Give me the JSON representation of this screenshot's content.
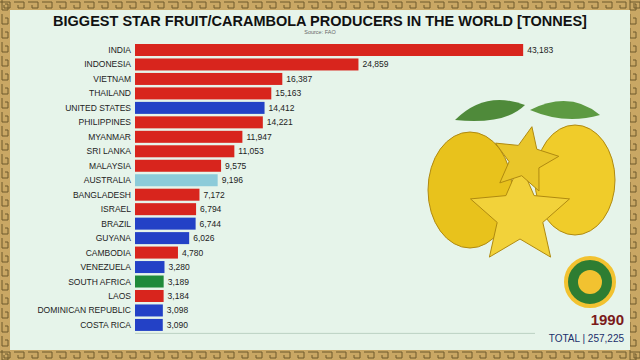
{
  "chart_data": {
    "type": "bar",
    "orientation": "horizontal",
    "title": "BIGGEST STAR FRUIT/CARAMBOLA PRODUCERS IN THE WORLD [TONNES]",
    "subtitle": "Source: FAO",
    "annotations": [
      "1990",
      "TOTAL | 257,225"
    ],
    "categories": [
      "INDIA",
      "INDONESIA",
      "VIETNAM",
      "THAILAND",
      "UNITED STATES",
      "PHILIPPINES",
      "MYANMAR",
      "SRI LANKA",
      "MALAYSIA",
      "AUSTRALIA",
      "BANGLADESH",
      "ISRAEL",
      "BRAZIL",
      "GUYANA",
      "CAMBODIA",
      "VENEZUELA",
      "SOUTH AFRICA",
      "LAOS",
      "DOMINICAN REPUBLIC",
      "COSTA RICA"
    ],
    "values": [
      43183,
      24859,
      16387,
      15163,
      14412,
      14221,
      11947,
      11053,
      9575,
      9196,
      7172,
      6794,
      6744,
      6026,
      4780,
      3280,
      3189,
      3184,
      3098,
      3090
    ],
    "value_labels": [
      "43,183",
      "24,859",
      "16,387",
      "15,163",
      "14,412",
      "14,221",
      "11,947",
      "11,053",
      "9,575",
      "9,196",
      "7,172",
      "6,794",
      "6,744",
      "6,026",
      "4,780",
      "3,280",
      "3,189",
      "3,184",
      "3,098",
      "3,090"
    ],
    "colors": [
      "#d8251d",
      "#d8251d",
      "#d8251d",
      "#d8251d",
      "#2341c6",
      "#d8251d",
      "#d8251d",
      "#d8251d",
      "#d8251d",
      "#8ccbd9",
      "#d8251d",
      "#d8251d",
      "#2341c6",
      "#2341c6",
      "#d8251d",
      "#2341c6",
      "#1f8a3a",
      "#d8251d",
      "#2341c6",
      "#2341c6"
    ],
    "ylim": [
      0,
      44500
    ],
    "data_labels": true,
    "tick_labels": false,
    "grid": false
  }
}
